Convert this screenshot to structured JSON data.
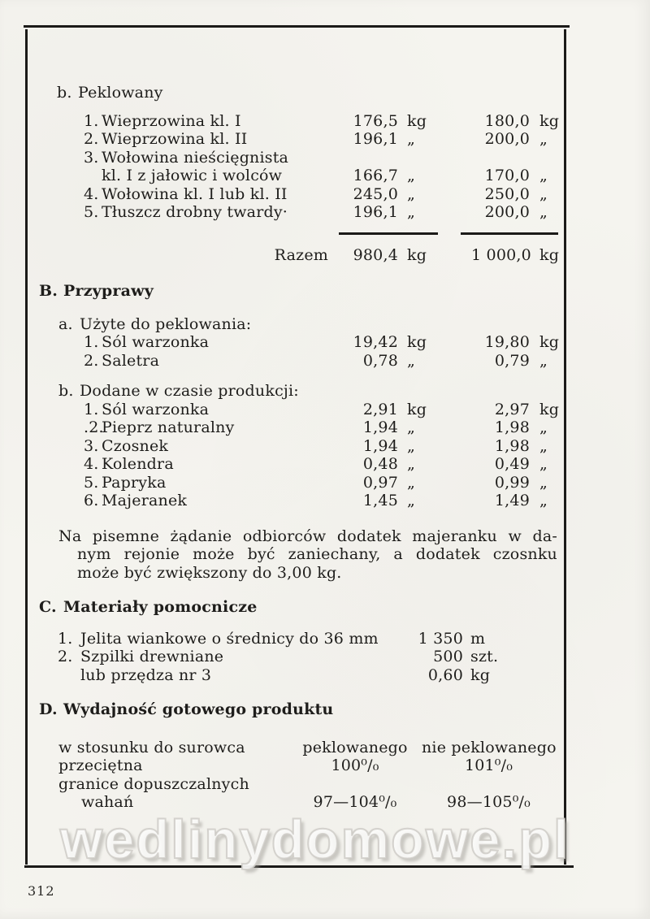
{
  "page": {
    "number": "312"
  },
  "watermark": {
    "text": "wedlinydomowe.pl"
  },
  "colors": {
    "ink": "#1e1d1b",
    "paper": "#f5f4ef",
    "frame": "#1b1a18",
    "watermark_outline": "#d4d3d0"
  },
  "curing": {
    "letter": "b.",
    "title": "Peklowany",
    "items": [
      {
        "num": "1.",
        "label": "Wieprzowina kl. I",
        "v1": "176,5",
        "u1": "kg",
        "v2": "180,0",
        "u2": "kg"
      },
      {
        "num": "2.",
        "label": "Wieprzowina kl. II",
        "v1": "196,1",
        "u1": "„",
        "v2": "200,0",
        "u2": "„"
      },
      {
        "num": "3.",
        "label": "Wołowina nieścięgnista",
        "v1": "",
        "u1": "",
        "v2": "",
        "u2": ""
      },
      {
        "num": "",
        "label": "kl. I z jałowic i wolców",
        "v1": "166,7",
        "u1": "„",
        "v2": "170,0",
        "u2": "„"
      },
      {
        "num": "4.",
        "label": "Wołowina kl. I lub kl. II",
        "v1": "245,0",
        "u1": "„",
        "v2": "250,0",
        "u2": "„"
      },
      {
        "num": "5.",
        "label": "Tłuszcz drobny twardy·",
        "v1": "196,1",
        "u1": "„",
        "v2": "200,0",
        "u2": "„"
      }
    ],
    "total": {
      "label": "Razem",
      "v1": "980,4",
      "u1": "kg",
      "v2": "1 000,0",
      "u2": "kg"
    }
  },
  "spices": {
    "letter": "B.",
    "title": "Przyprawy",
    "sub_a": {
      "letter": "a.",
      "title": "Użyte do peklowania:",
      "items": [
        {
          "num": "1.",
          "label": "Sól warzonka",
          "v1": "19,42",
          "u1": "kg",
          "v2": "19,80",
          "u2": "kg"
        },
        {
          "num": "2.",
          "label": "Saletra",
          "v1": "0,78",
          "u1": "„",
          "v2": "0,79",
          "u2": "„"
        }
      ]
    },
    "sub_b": {
      "letter": "b.",
      "title": "Dodane w czasie produkcji:",
      "items": [
        {
          "num": "1.",
          "label": "Sól warzonka",
          "v1": "2,91",
          "u1": "kg",
          "v2": "2,97",
          "u2": "kg"
        },
        {
          "num": ".2.",
          "label": "Pieprz naturalny",
          "v1": "1,94",
          "u1": "„",
          "v2": "1,98",
          "u2": "„"
        },
        {
          "num": "3.",
          "label": "Czosnek",
          "v1": "1,94",
          "u1": "„",
          "v2": "1,98",
          "u2": "„"
        },
        {
          "num": "4.",
          "label": "Kolendra",
          "v1": "0,48",
          "u1": "„",
          "v2": "0,49",
          "u2": "„"
        },
        {
          "num": "5.",
          "label": "Papryka",
          "v1": "0,97",
          "u1": "„",
          "v2": "0,99",
          "u2": "„"
        },
        {
          "num": "6.",
          "label": "Majeranek",
          "v1": "1,45",
          "u1": "„",
          "v2": "1,49",
          "u2": "„"
        }
      ]
    }
  },
  "note": {
    "line1": "Na pisemne żądanie odbiorców dodatek majeranku w da-",
    "line2": "nym rejonie może być zaniechany, a dodatek czosnku",
    "line3": "może być zwiększony do 3,00 kg."
  },
  "materials": {
    "letter": "C.",
    "title": "Materiały pomocnicze",
    "items": [
      {
        "num": "1.",
        "label": "Jelita wiankowe o średnicy do 36 mm",
        "v": "1 350",
        "u": "m"
      },
      {
        "num": "2.",
        "label": "Szpilki drewniane",
        "v": "500",
        "u": "szt."
      },
      {
        "num": "",
        "label": "lub przędza nr 3",
        "v": "0,60",
        "u": "kg"
      }
    ]
  },
  "yield": {
    "letter": "D.",
    "title": "Wydajność gotowego produktu",
    "rows": [
      {
        "label": "w stosunku do surowca",
        "c1": "peklowanego",
        "c2": "nie peklowanego"
      },
      {
        "label": "przeciętna",
        "c1": "100⁰/₀",
        "c2": "101⁰/₀"
      },
      {
        "label": "granice dopuszczalnych",
        "c1": "",
        "c2": ""
      },
      {
        "label": "wahań",
        "c1": "97—104⁰/₀",
        "c2": "98—105⁰/₀"
      }
    ]
  }
}
